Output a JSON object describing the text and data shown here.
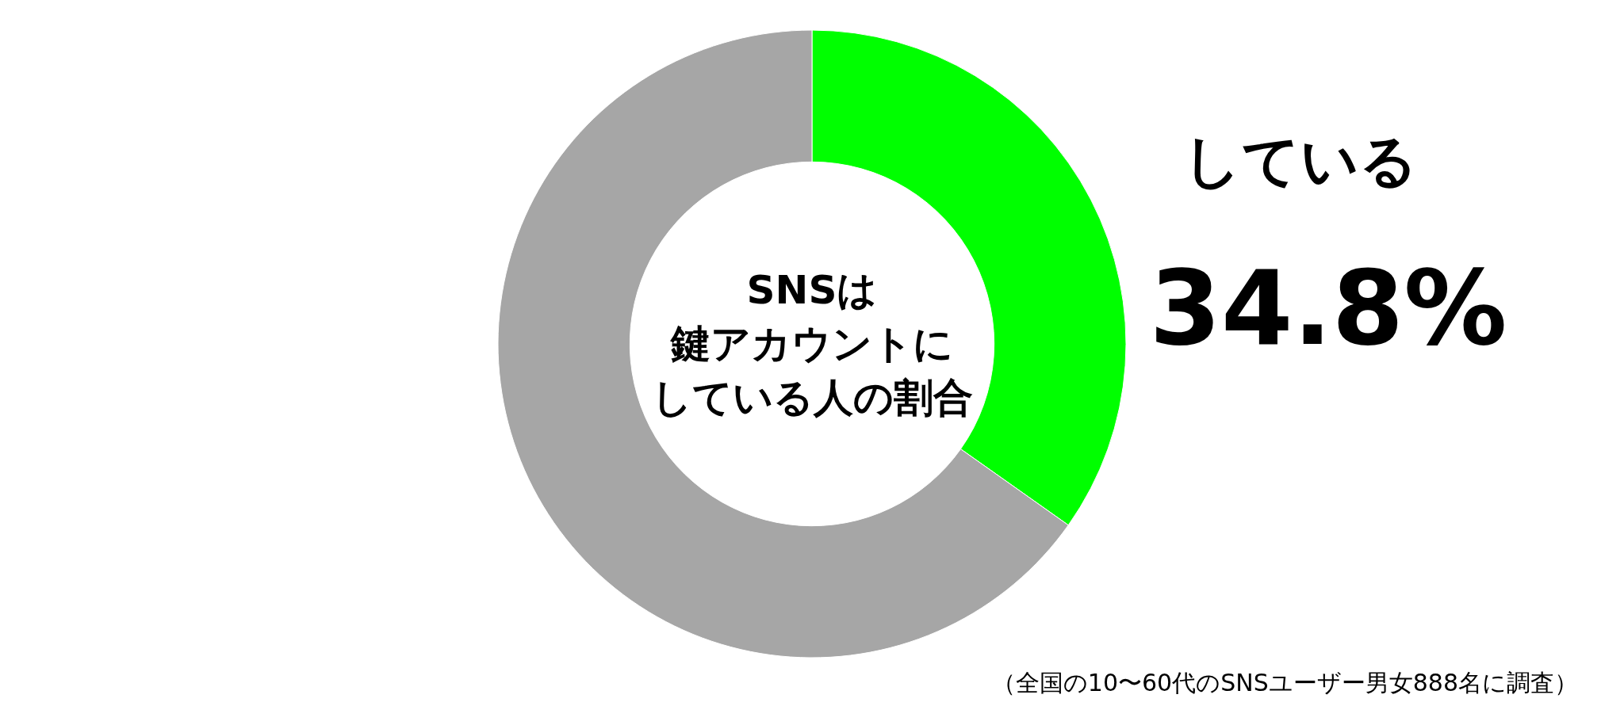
{
  "chart_data": {
    "type": "donut",
    "title": "SNSは",
    "subtitle": "鍵アカウントにしている人の割合",
    "categories": [
      "している",
      null
    ],
    "values": [
      34.8,
      65.2
    ],
    "colors": [
      "#00ff00",
      "#a6a6a6"
    ],
    "value_labels": [
      "34.8%",
      null
    ],
    "annotations": [
      "（全国の10〜60代のSNSユーザー男女888名に調査）"
    ]
  }
}
